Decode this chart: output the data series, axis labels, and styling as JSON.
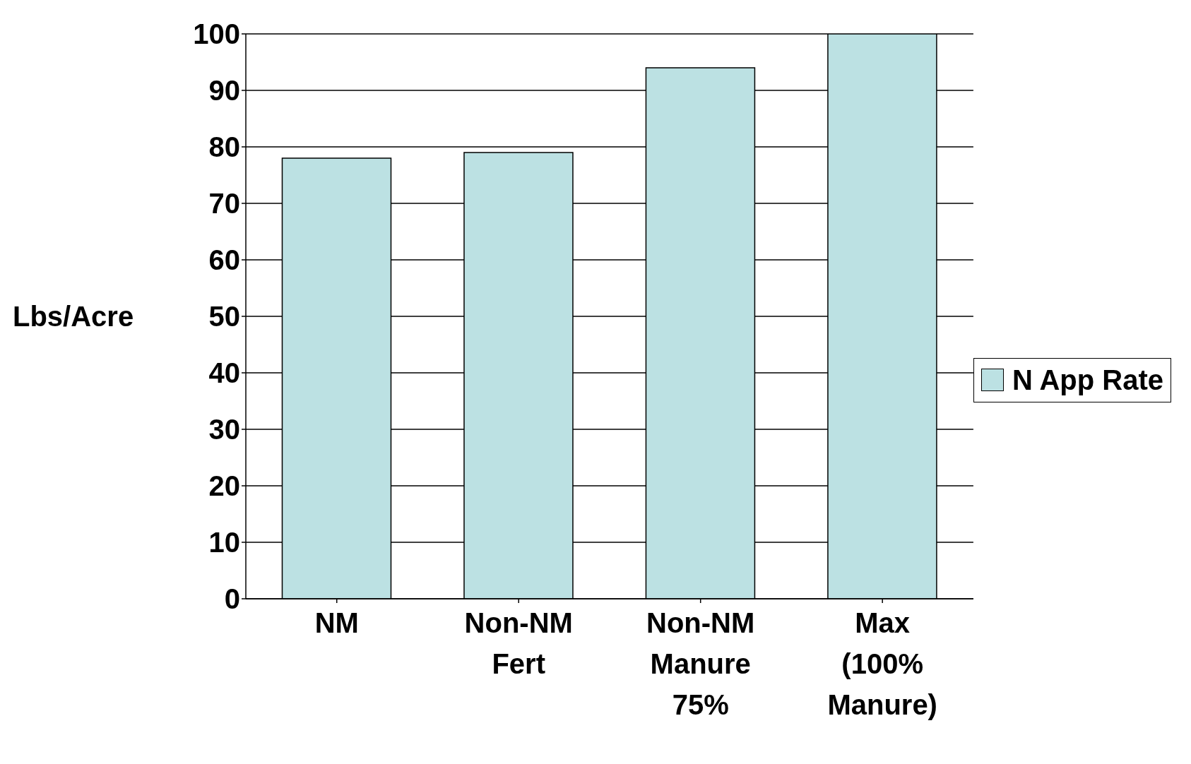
{
  "chart_data": {
    "type": "bar",
    "categories": [
      "NM",
      "Non-NM Fert",
      "Non-NM Manure 75%",
      "Max (100% Manure)"
    ],
    "series": [
      {
        "name": "N App Rate",
        "color": "#bce1e3",
        "values": [
          78,
          79,
          94,
          100
        ]
      }
    ],
    "ylabel": "Lbs/Acre",
    "ylim": [
      0,
      100
    ],
    "yticks": [
      0,
      10,
      20,
      30,
      40,
      50,
      60,
      70,
      80,
      90,
      100
    ],
    "grid": "y",
    "legend": "right"
  }
}
